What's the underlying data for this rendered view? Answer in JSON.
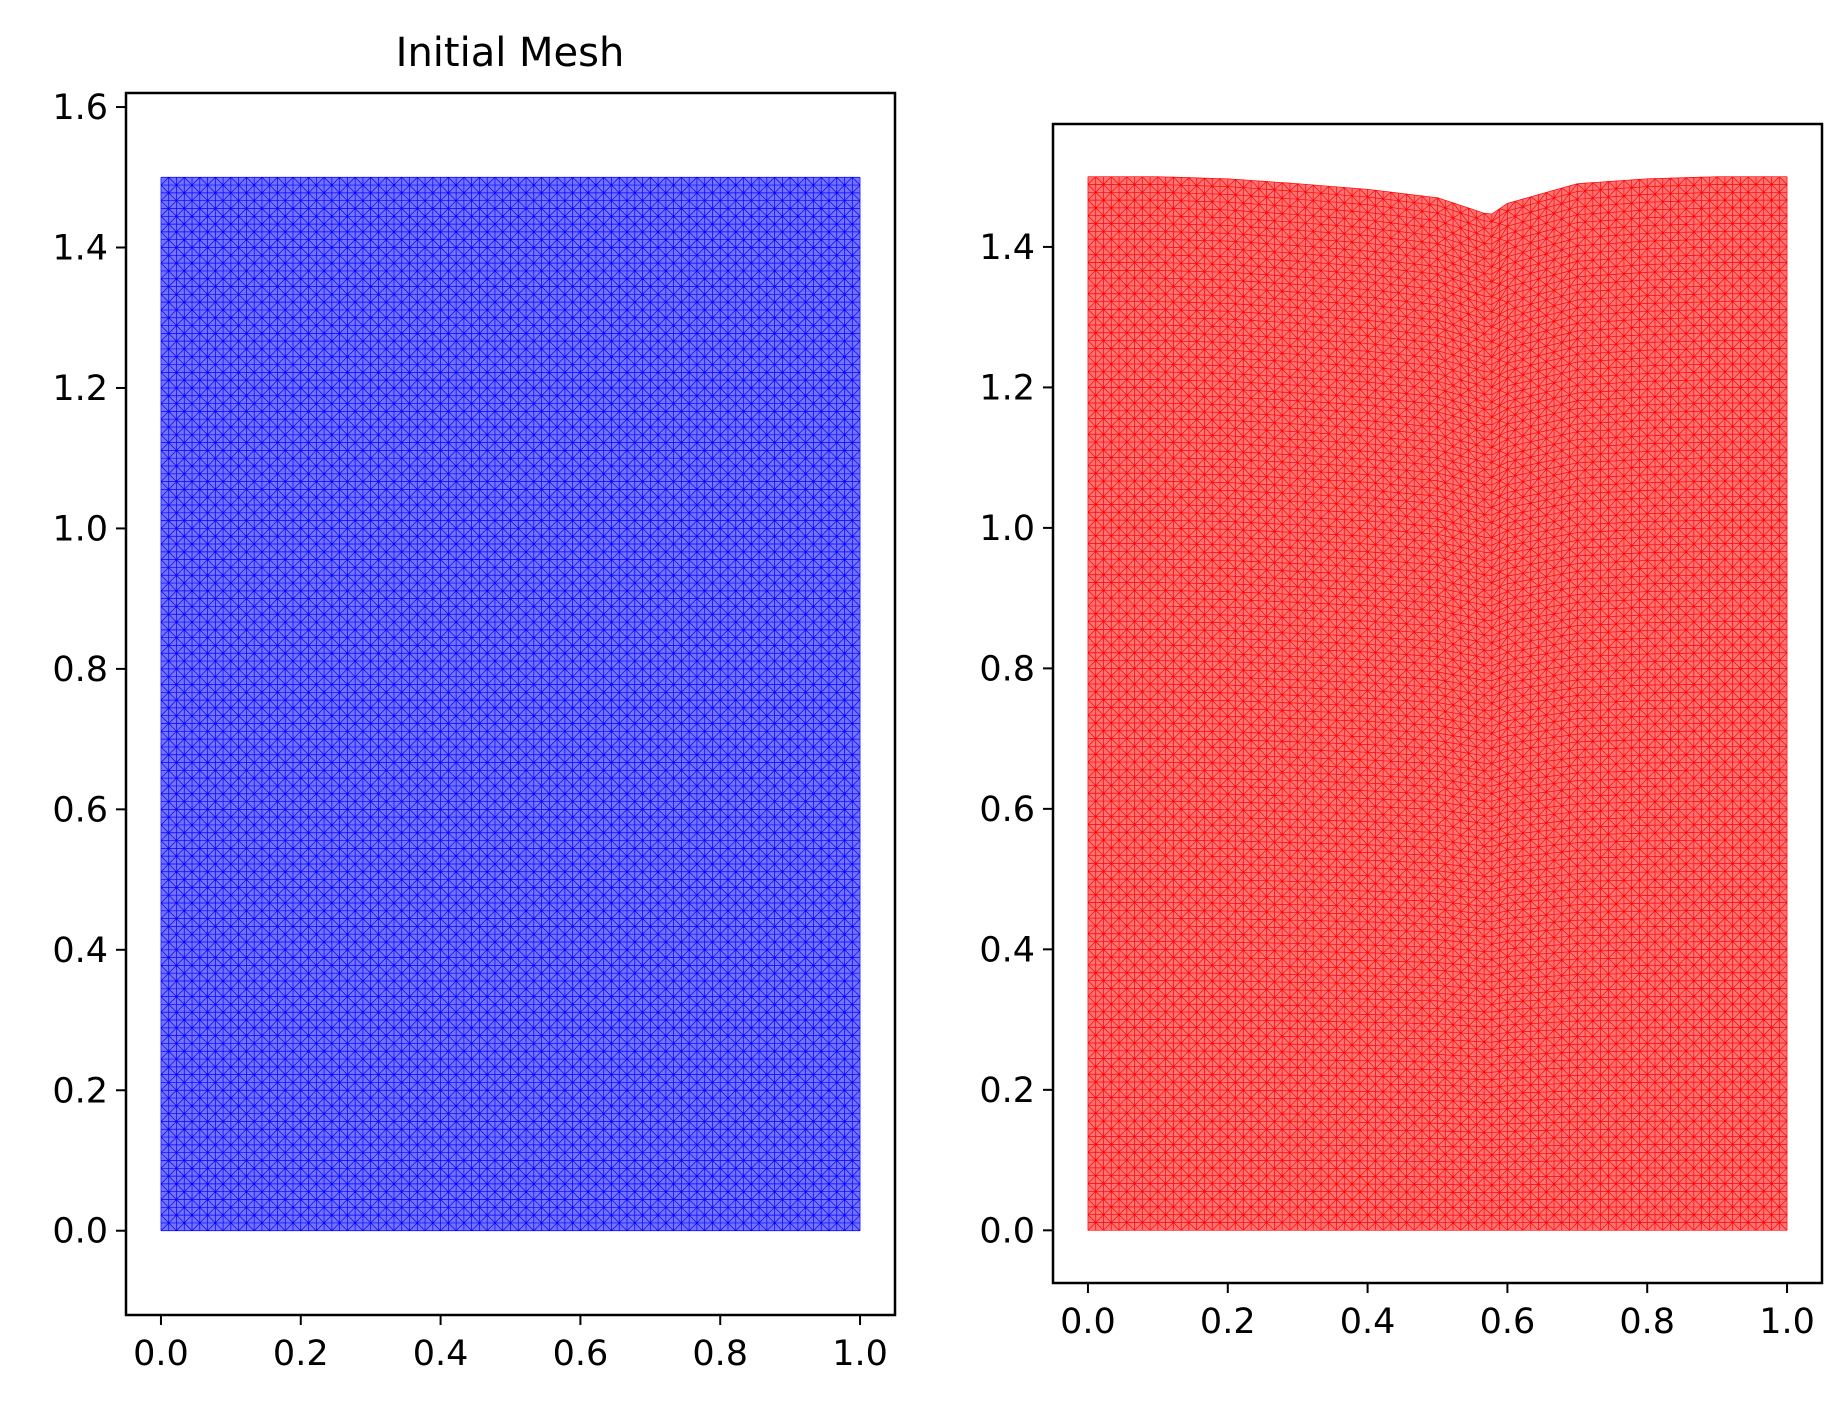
{
  "chart_data": [
    {
      "type": "mesh",
      "title": "Initial Mesh",
      "xlabel": "",
      "ylabel": "",
      "xlim": [
        -0.05,
        1.05
      ],
      "ylim": [
        -0.12,
        1.62
      ],
      "xticks": [
        "0.0",
        "0.2",
        "0.4",
        "0.6",
        "0.8",
        "1.0"
      ],
      "yticks": [
        "0.0",
        "0.2",
        "0.4",
        "0.6",
        "0.8",
        "1.0",
        "1.2",
        "1.4",
        "1.6"
      ],
      "domain": {
        "x": [
          0.0,
          1.0
        ],
        "y": [
          0.0,
          1.5
        ]
      },
      "mesh": {
        "color": "#0000ff",
        "element": "triangle",
        "nx": 90,
        "ny": 135
      },
      "top_boundary": "flat"
    },
    {
      "type": "mesh",
      "title": "",
      "xlabel": "",
      "ylabel": "",
      "xlim": [
        -0.05,
        1.05
      ],
      "ylim": [
        -0.075,
        1.575
      ],
      "xticks": [
        "0.0",
        "0.2",
        "0.4",
        "0.6",
        "0.8",
        "1.0"
      ],
      "yticks": [
        "0.0",
        "0.2",
        "0.4",
        "0.6",
        "0.8",
        "1.0",
        "1.2",
        "1.4"
      ],
      "domain": {
        "x": [
          0.0,
          1.0
        ],
        "y": [
          0.0,
          1.5
        ]
      },
      "mesh": {
        "color": "#ff0000",
        "element": "triangle",
        "nx": 90,
        "ny": 135
      },
      "top_boundary": "deformed",
      "top_profile": [
        [
          0.0,
          1.5
        ],
        [
          0.1,
          1.5
        ],
        [
          0.2,
          1.497
        ],
        [
          0.3,
          1.49
        ],
        [
          0.4,
          1.482
        ],
        [
          0.5,
          1.47
        ],
        [
          0.555,
          1.452
        ],
        [
          0.575,
          1.445
        ],
        [
          0.6,
          1.462
        ],
        [
          0.7,
          1.49
        ],
        [
          0.8,
          1.497
        ],
        [
          0.9,
          1.5
        ],
        [
          1.0,
          1.5
        ]
      ]
    }
  ]
}
